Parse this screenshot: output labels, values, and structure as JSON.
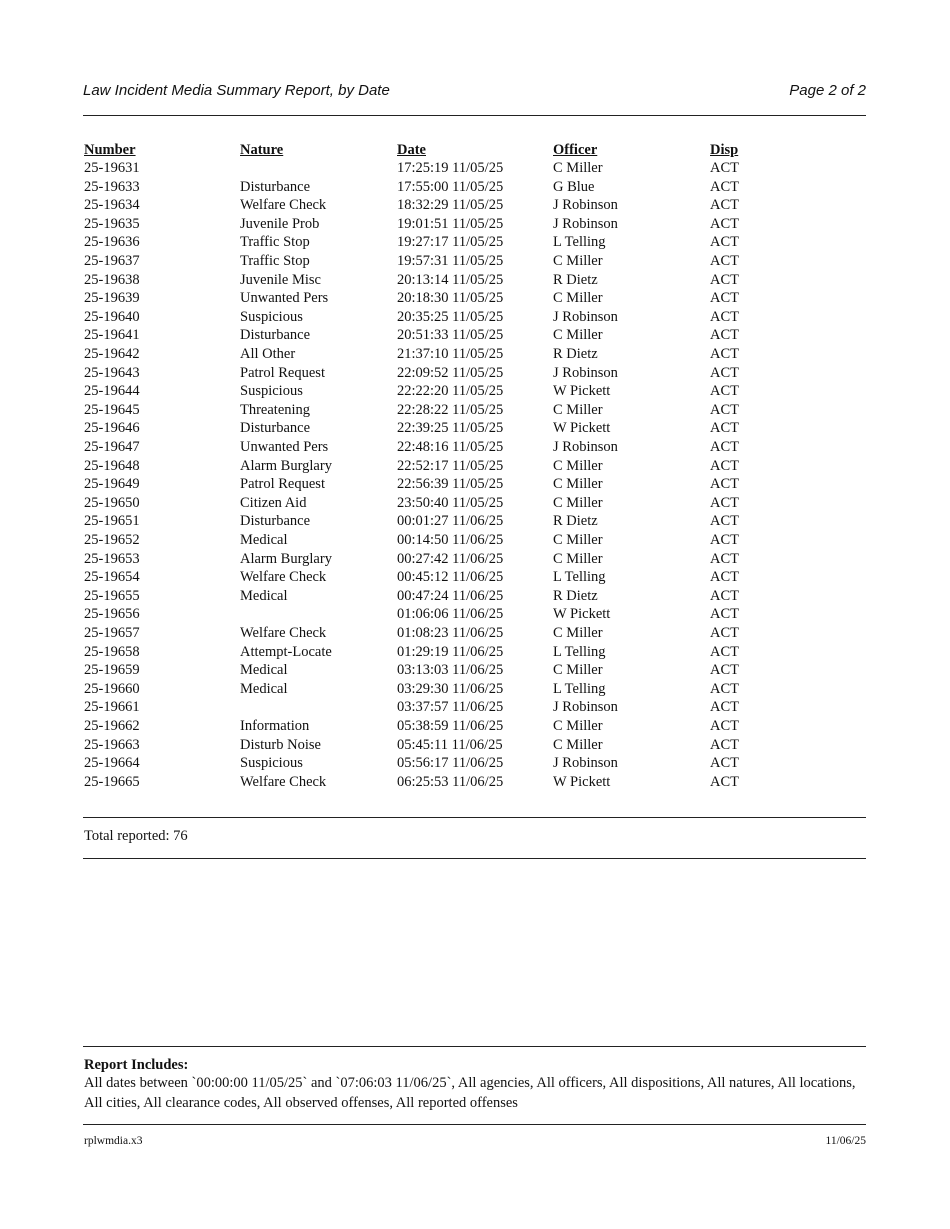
{
  "header": {
    "title": "Law Incident Media Summary Report, by Date",
    "page": "Page 2 of 2"
  },
  "table": {
    "columns": [
      "Number",
      "Nature",
      "Date",
      "Officer",
      "Disp"
    ],
    "rows": [
      [
        "25-19631",
        "",
        "17:25:19 11/05/25",
        "C Miller",
        "ACT"
      ],
      [
        "25-19633",
        "Disturbance",
        "17:55:00 11/05/25",
        "G Blue",
        "ACT"
      ],
      [
        "25-19634",
        "Welfare Check",
        "18:32:29 11/05/25",
        "J Robinson",
        "ACT"
      ],
      [
        "25-19635",
        "Juvenile Prob",
        "19:01:51 11/05/25",
        "J Robinson",
        "ACT"
      ],
      [
        "25-19636",
        "Traffic Stop",
        "19:27:17 11/05/25",
        "L Telling",
        "ACT"
      ],
      [
        "25-19637",
        "Traffic Stop",
        "19:57:31 11/05/25",
        "C Miller",
        "ACT"
      ],
      [
        "25-19638",
        "Juvenile Misc",
        "20:13:14 11/05/25",
        "R Dietz",
        "ACT"
      ],
      [
        "25-19639",
        "Unwanted Pers",
        "20:18:30 11/05/25",
        "C Miller",
        "ACT"
      ],
      [
        "25-19640",
        "Suspicious",
        "20:35:25 11/05/25",
        "J Robinson",
        "ACT"
      ],
      [
        "25-19641",
        "Disturbance",
        "20:51:33 11/05/25",
        "C Miller",
        "ACT"
      ],
      [
        "25-19642",
        "All Other",
        "21:37:10 11/05/25",
        "R Dietz",
        "ACT"
      ],
      [
        "25-19643",
        "Patrol Request",
        "22:09:52 11/05/25",
        "J Robinson",
        "ACT"
      ],
      [
        "25-19644",
        "Suspicious",
        "22:22:20 11/05/25",
        "W Pickett",
        "ACT"
      ],
      [
        "25-19645",
        "Threatening",
        "22:28:22 11/05/25",
        "C Miller",
        "ACT"
      ],
      [
        "25-19646",
        "Disturbance",
        "22:39:25 11/05/25",
        "W Pickett",
        "ACT"
      ],
      [
        "25-19647",
        "Unwanted Pers",
        "22:48:16 11/05/25",
        "J Robinson",
        "ACT"
      ],
      [
        "25-19648",
        "Alarm Burglary",
        "22:52:17 11/05/25",
        "C Miller",
        "ACT"
      ],
      [
        "25-19649",
        "Patrol Request",
        "22:56:39 11/05/25",
        "C Miller",
        "ACT"
      ],
      [
        "25-19650",
        "Citizen Aid",
        "23:50:40 11/05/25",
        "C Miller",
        "ACT"
      ],
      [
        "25-19651",
        "Disturbance",
        "00:01:27 11/06/25",
        "R Dietz",
        "ACT"
      ],
      [
        "25-19652",
        "Medical",
        "00:14:50 11/06/25",
        "C Miller",
        "ACT"
      ],
      [
        "25-19653",
        "Alarm Burglary",
        "00:27:42 11/06/25",
        "C Miller",
        "ACT"
      ],
      [
        "25-19654",
        "Welfare Check",
        "00:45:12 11/06/25",
        "L Telling",
        "ACT"
      ],
      [
        "25-19655",
        "Medical",
        "00:47:24 11/06/25",
        "R Dietz",
        "ACT"
      ],
      [
        "25-19656",
        "",
        "01:06:06 11/06/25",
        "W Pickett",
        "ACT"
      ],
      [
        "25-19657",
        "Welfare Check",
        "01:08:23 11/06/25",
        "C Miller",
        "ACT"
      ],
      [
        "25-19658",
        "Attempt-Locate",
        "01:29:19 11/06/25",
        "L Telling",
        "ACT"
      ],
      [
        "25-19659",
        "Medical",
        "03:13:03 11/06/25",
        "C Miller",
        "ACT"
      ],
      [
        "25-19660",
        "Medical",
        "03:29:30 11/06/25",
        "L Telling",
        "ACT"
      ],
      [
        "25-19661",
        "",
        "03:37:57 11/06/25",
        "J Robinson",
        "ACT"
      ],
      [
        "25-19662",
        "Information",
        "05:38:59 11/06/25",
        "C Miller",
        "ACT"
      ],
      [
        "25-19663",
        "Disturb Noise",
        "05:45:11 11/06/25",
        "C Miller",
        "ACT"
      ],
      [
        "25-19664",
        "Suspicious",
        "05:56:17 11/06/25",
        "J Robinson",
        "ACT"
      ],
      [
        "25-19665",
        "Welfare Check",
        "06:25:53 11/06/25",
        "W Pickett",
        "ACT"
      ]
    ]
  },
  "total": "Total reported: 76",
  "includes": {
    "title": "Report Includes:",
    "text": "All dates between `00:00:00 11/05/25` and `07:06:03 11/06/25`, All agencies, All officers, All dispositions, All natures, All locations, All cities, All clearance codes, All observed offenses, All reported offenses"
  },
  "footer": {
    "program": "rplwmdia.x3",
    "date": "11/06/25"
  }
}
